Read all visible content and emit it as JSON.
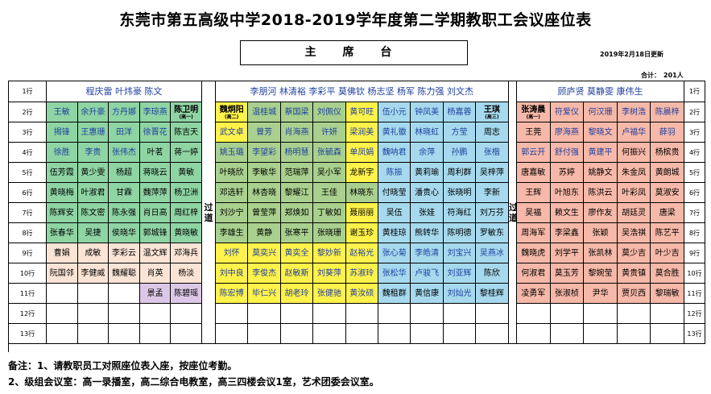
{
  "title": "东莞市第五高级中学2018-2019学年度第二学期教职工会议座位表",
  "stage_label": "主 席 台",
  "updated_text": "2019年2月18日更新",
  "total_label": "合计：",
  "total_value": "201人",
  "aisle_label": "过道",
  "colors": {
    "A": "#8fd4a3",
    "B": "#fbe4d5",
    "C": "#dcc8e6",
    "D": "#a9d08e",
    "E": "#fff24a",
    "F": "#a6d9ed",
    "G": "#f6b8a8",
    "W": "#ffffff",
    "text_dark": "#000000",
    "text_blue": "#1f3f9f"
  },
  "row_labels": [
    "1行",
    "2行",
    "3行",
    "4行",
    "5行",
    "6行",
    "7行",
    "8行",
    "9行",
    "10行",
    "11行",
    "12行",
    "13行"
  ],
  "row1": {
    "left": "程庆雷  叶炜豪  陈文",
    "middle": "李朋河  林清裕  李彩平  莫佛钦  杨志坚  杨军  陈力强  刘文杰",
    "right": "顾庐贤  莫静雯  康伟生"
  },
  "left_block": [
    [
      {
        "t": "王敏",
        "c": "A"
      },
      {
        "t": "余升豪",
        "c": "A"
      },
      {
        "t": "方丹娜",
        "c": "A"
      },
      {
        "t": "李琼燕",
        "c": "A"
      },
      {
        "t": "陈卫明",
        "c": "A",
        "sub": "(高一)",
        "bold": true
      }
    ],
    [
      {
        "t": "揭锋",
        "c": "A"
      },
      {
        "t": "王惠珊",
        "c": "A"
      },
      {
        "t": "田洋",
        "c": "A"
      },
      {
        "t": "徐晋花",
        "c": "A"
      },
      {
        "t": "陈吉天",
        "c": "A",
        "dark": true
      }
    ],
    [
      {
        "t": "徐胜",
        "c": "A"
      },
      {
        "t": "李贵",
        "c": "A"
      },
      {
        "t": "张伟杰",
        "c": "A"
      },
      {
        "t": "叶茗",
        "c": "A",
        "dark": true
      },
      {
        "t": "蒋一婷",
        "c": "A",
        "dark": true
      }
    ],
    [
      {
        "t": "伍芳霞",
        "c": "A",
        "dark": true
      },
      {
        "t": "黄少雯",
        "c": "A",
        "dark": true
      },
      {
        "t": "杨超",
        "c": "A",
        "dark": true
      },
      {
        "t": "蒋晓云",
        "c": "A",
        "dark": true
      },
      {
        "t": "黄敏",
        "c": "A",
        "dark": true
      }
    ],
    [
      {
        "t": "黄晓梅",
        "c": "A",
        "dark": true
      },
      {
        "t": "叶淑君",
        "c": "A",
        "dark": true
      },
      {
        "t": "甘霖",
        "c": "A",
        "dark": true
      },
      {
        "t": "魏萍萍",
        "c": "A",
        "dark": true
      },
      {
        "t": "杨卫洲",
        "c": "A",
        "dark": true
      }
    ],
    [
      {
        "t": "陈辉安",
        "c": "A",
        "dark": true
      },
      {
        "t": "陈文密",
        "c": "A",
        "dark": true
      },
      {
        "t": "陈永强",
        "c": "A",
        "dark": true
      },
      {
        "t": "肖日高",
        "c": "A",
        "dark": true
      },
      {
        "t": "周红梓",
        "c": "A",
        "dark": true
      }
    ],
    [
      {
        "t": "张春华",
        "c": "A",
        "dark": true
      },
      {
        "t": "吴捷",
        "c": "A",
        "dark": true
      },
      {
        "t": "侯晓华",
        "c": "A",
        "dark": true
      },
      {
        "t": "郭城锋",
        "c": "A",
        "dark": true
      },
      {
        "t": "黄晓敏",
        "c": "A",
        "dark": true
      }
    ],
    [
      {
        "t": "曹娟",
        "c": "B",
        "dark": true
      },
      {
        "t": "成敏",
        "c": "B",
        "dark": true
      },
      {
        "t": "李彩云",
        "c": "B",
        "dark": true
      },
      {
        "t": "温文辉",
        "c": "B",
        "dark": true
      },
      {
        "t": "邓海兵",
        "c": "B",
        "dark": true
      }
    ],
    [
      {
        "t": "阮国邻",
        "c": "B",
        "dark": true
      },
      {
        "t": "李健威",
        "c": "B",
        "dark": true
      },
      {
        "t": "魏耀聪",
        "c": "B",
        "dark": true
      },
      {
        "t": "肖英",
        "c": "B",
        "dark": true
      },
      {
        "t": "杨淡",
        "c": "B",
        "dark": true
      }
    ],
    [
      {
        "t": "",
        "c": "W"
      },
      {
        "t": "",
        "c": "W"
      },
      {
        "t": "",
        "c": "W"
      },
      {
        "t": "景孟",
        "c": "C",
        "dark": true
      },
      {
        "t": "陈碧瑶",
        "c": "C",
        "dark": true
      }
    ],
    [
      {
        "t": "",
        "c": "W"
      },
      {
        "t": "",
        "c": "W"
      },
      {
        "t": "",
        "c": "W"
      },
      {
        "t": "",
        "c": "W"
      },
      {
        "t": "",
        "c": "W"
      }
    ],
    [
      {
        "t": "",
        "c": "W"
      },
      {
        "t": "",
        "c": "W"
      },
      {
        "t": "",
        "c": "W"
      },
      {
        "t": "",
        "c": "W"
      },
      {
        "t": "",
        "c": "W"
      }
    ]
  ],
  "middle_block": [
    [
      {
        "t": "魏炯阳",
        "c": "E",
        "sub": "(高二)",
        "bold": true
      },
      {
        "t": "温桂城",
        "c": "D"
      },
      {
        "t": "蔡国梁",
        "c": "D"
      },
      {
        "t": "刘佩仪",
        "c": "D"
      },
      {
        "t": "黄可旺",
        "c": "E"
      },
      {
        "t": "伍小元",
        "c": "F"
      },
      {
        "t": "钟凤美",
        "c": "F"
      },
      {
        "t": "杨嘉蓉",
        "c": "F"
      },
      {
        "t": "王琪",
        "c": "F",
        "sub": "(高三)",
        "bold": true
      }
    ],
    [
      {
        "t": "武文卓",
        "c": "E"
      },
      {
        "t": "曾芳",
        "c": "D"
      },
      {
        "t": "肖海燕",
        "c": "D"
      },
      {
        "t": "许妍",
        "c": "D"
      },
      {
        "t": "梁润美",
        "c": "E"
      },
      {
        "t": "黄礼徽",
        "c": "F"
      },
      {
        "t": "林晓虹",
        "c": "F"
      },
      {
        "t": "方莹",
        "c": "F"
      },
      {
        "t": "周志",
        "c": "F",
        "dark": true
      }
    ],
    [
      {
        "t": "姚玉璐",
        "c": "D"
      },
      {
        "t": "李望彩",
        "c": "D"
      },
      {
        "t": "杨明慧",
        "c": "D"
      },
      {
        "t": "张毓森",
        "c": "D"
      },
      {
        "t": "单凤娟",
        "c": "E"
      },
      {
        "t": "魏呐君",
        "c": "F"
      },
      {
        "t": "余萍",
        "c": "F"
      },
      {
        "t": "孙鹏",
        "c": "F"
      },
      {
        "t": "张楷",
        "c": "F"
      }
    ],
    [
      {
        "t": "叶晓欣",
        "c": "D",
        "dark": true
      },
      {
        "t": "李敏华",
        "c": "D",
        "dark": true
      },
      {
        "t": "范瑞萍",
        "c": "D",
        "dark": true
      },
      {
        "t": "吴小军",
        "c": "D",
        "dark": true
      },
      {
        "t": "龙新宇",
        "c": "E",
        "dark": true
      },
      {
        "t": "陈振",
        "c": "F"
      },
      {
        "t": "黄莉瑜",
        "c": "F",
        "dark": true
      },
      {
        "t": "周利群",
        "c": "F",
        "dark": true
      },
      {
        "t": "吴梓萍",
        "c": "F",
        "dark": true
      }
    ],
    [
      {
        "t": "邓选轩",
        "c": "D",
        "dark": true
      },
      {
        "t": "林杏晓",
        "c": "D",
        "dark": true
      },
      {
        "t": "黎耀江",
        "c": "D",
        "dark": true
      },
      {
        "t": "王佳",
        "c": "D",
        "dark": true
      },
      {
        "t": "林晓东",
        "c": "D",
        "dark": true
      },
      {
        "t": "付晓莹",
        "c": "F",
        "dark": true
      },
      {
        "t": "潘贵心",
        "c": "F",
        "dark": true
      },
      {
        "t": "张晓明",
        "c": "F",
        "dark": true
      },
      {
        "t": "李新",
        "c": "F",
        "dark": true
      }
    ],
    [
      {
        "t": "刘沙宁",
        "c": "D",
        "dark": true
      },
      {
        "t": "曾莹萍",
        "c": "D",
        "dark": true
      },
      {
        "t": "郑焕如",
        "c": "D",
        "dark": true
      },
      {
        "t": "丁敏如",
        "c": "D",
        "dark": true
      },
      {
        "t": "聂丽丽",
        "c": "E",
        "dark": true
      },
      {
        "t": "吴伍",
        "c": "F",
        "dark": true
      },
      {
        "t": "张娃",
        "c": "F",
        "dark": true
      },
      {
        "t": "符海红",
        "c": "F",
        "dark": true
      },
      {
        "t": "刘万芬",
        "c": "F",
        "dark": true
      }
    ],
    [
      {
        "t": "李雄生",
        "c": "D",
        "dark": true
      },
      {
        "t": "黄静",
        "c": "D",
        "dark": true
      },
      {
        "t": "张寒平",
        "c": "D",
        "dark": true
      },
      {
        "t": "张晓珊",
        "c": "D",
        "dark": true
      },
      {
        "t": "谢玉珍",
        "c": "E",
        "dark": true
      },
      {
        "t": "黄桂琼",
        "c": "F",
        "dark": true
      },
      {
        "t": "熊转华",
        "c": "F",
        "dark": true
      },
      {
        "t": "陈明德",
        "c": "F",
        "dark": true
      },
      {
        "t": "罗敏东",
        "c": "F",
        "dark": true
      }
    ],
    [
      {
        "t": "刘怀",
        "c": "E"
      },
      {
        "t": "莫奕兴",
        "c": "E"
      },
      {
        "t": "黄奕全",
        "c": "E"
      },
      {
        "t": "黎妙新",
        "c": "E"
      },
      {
        "t": "赵裕光",
        "c": "E"
      },
      {
        "t": "张心菊",
        "c": "F"
      },
      {
        "t": "李皓清",
        "c": "F"
      },
      {
        "t": "刘宝兴",
        "c": "F"
      },
      {
        "t": "吴燕冰",
        "c": "F"
      }
    ],
    [
      {
        "t": "刘中良",
        "c": "E"
      },
      {
        "t": "李俊杰",
        "c": "E"
      },
      {
        "t": "赵敏斯",
        "c": "E"
      },
      {
        "t": "刘葵萍",
        "c": "E"
      },
      {
        "t": "苏淑玲",
        "c": "E"
      },
      {
        "t": "张松华",
        "c": "F"
      },
      {
        "t": "卢骏飞",
        "c": "F"
      },
      {
        "t": "刘亚辉",
        "c": "F"
      },
      {
        "t": "陈欣",
        "c": "F",
        "dark": true
      }
    ],
    [
      {
        "t": "陈宏博",
        "c": "E"
      },
      {
        "t": "毕仁兴",
        "c": "E"
      },
      {
        "t": "胡老玲",
        "c": "E"
      },
      {
        "t": "张健驰",
        "c": "E"
      },
      {
        "t": "黄汝硕",
        "c": "E"
      },
      {
        "t": "魏租群",
        "c": "F",
        "dark": true
      },
      {
        "t": "黄信康",
        "c": "F",
        "dark": true
      },
      {
        "t": "刘灿光",
        "c": "F"
      },
      {
        "t": "黎桂辉",
        "c": "F",
        "dark": true
      }
    ],
    [
      {
        "t": "",
        "c": "W"
      },
      {
        "t": "",
        "c": "W"
      },
      {
        "t": "",
        "c": "W"
      },
      {
        "t": "",
        "c": "W"
      },
      {
        "t": "",
        "c": "W"
      },
      {
        "t": "",
        "c": "W"
      },
      {
        "t": "",
        "c": "W"
      },
      {
        "t": "",
        "c": "W"
      },
      {
        "t": "",
        "c": "W"
      }
    ],
    [
      {
        "t": "",
        "c": "W"
      },
      {
        "t": "",
        "c": "W"
      },
      {
        "t": "",
        "c": "W"
      },
      {
        "t": "",
        "c": "W"
      },
      {
        "t": "",
        "c": "W"
      },
      {
        "t": "",
        "c": "W"
      },
      {
        "t": "",
        "c": "W"
      },
      {
        "t": "",
        "c": "W"
      },
      {
        "t": "",
        "c": "W"
      }
    ]
  ],
  "right_block": [
    [
      {
        "t": "张涛晨",
        "c": "G",
        "sub": "(高一)",
        "bold": true
      },
      {
        "t": "符爱仪",
        "c": "G"
      },
      {
        "t": "何汉珊",
        "c": "G"
      },
      {
        "t": "李树浩",
        "c": "G"
      },
      {
        "t": "陈晨梓",
        "c": "G"
      }
    ],
    [
      {
        "t": "王莞",
        "c": "G",
        "dark": true
      },
      {
        "t": "廖海燕",
        "c": "G"
      },
      {
        "t": "黎晓文",
        "c": "G"
      },
      {
        "t": "卢福华",
        "c": "G"
      },
      {
        "t": "薛羽",
        "c": "G"
      }
    ],
    [
      {
        "t": "郭云开",
        "c": "G"
      },
      {
        "t": "舒付强",
        "c": "G"
      },
      {
        "t": "黄建平",
        "c": "G"
      },
      {
        "t": "何振兴",
        "c": "G",
        "dark": true
      },
      {
        "t": "杨槟贵",
        "c": "G",
        "dark": true
      }
    ],
    [
      {
        "t": "唐嘉敏",
        "c": "G",
        "dark": true
      },
      {
        "t": "苏婷",
        "c": "G",
        "dark": true
      },
      {
        "t": "姚静文",
        "c": "G",
        "dark": true
      },
      {
        "t": "朱金凤",
        "c": "G",
        "dark": true
      },
      {
        "t": "黄朗城",
        "c": "G",
        "dark": true
      }
    ],
    [
      {
        "t": "王辉",
        "c": "G",
        "dark": true
      },
      {
        "t": "叶旭东",
        "c": "G",
        "dark": true
      },
      {
        "t": "陈洪云",
        "c": "G",
        "dark": true
      },
      {
        "t": "叶彩凤",
        "c": "G",
        "dark": true
      },
      {
        "t": "莫淑安",
        "c": "G",
        "dark": true
      }
    ],
    [
      {
        "t": "吴福",
        "c": "G",
        "dark": true
      },
      {
        "t": "赖文生",
        "c": "G",
        "dark": true
      },
      {
        "t": "廖作友",
        "c": "G",
        "dark": true
      },
      {
        "t": "胡廷灵",
        "c": "G",
        "dark": true
      },
      {
        "t": "唐梁",
        "c": "G",
        "dark": true
      }
    ],
    [
      {
        "t": "周海军",
        "c": "G",
        "dark": true
      },
      {
        "t": "李梁鑫",
        "c": "G",
        "dark": true
      },
      {
        "t": "张颖",
        "c": "G",
        "dark": true
      },
      {
        "t": "吴浩祺",
        "c": "G",
        "dark": true
      },
      {
        "t": "陈艺平",
        "c": "G",
        "dark": true
      }
    ],
    [
      {
        "t": "魏晓虎",
        "c": "G",
        "dark": true
      },
      {
        "t": "刘学平",
        "c": "G",
        "dark": true
      },
      {
        "t": "张凯林",
        "c": "G",
        "dark": true
      },
      {
        "t": "莫少吉",
        "c": "G",
        "dark": true
      },
      {
        "t": "叶少吉",
        "c": "G",
        "dark": true
      }
    ],
    [
      {
        "t": "何淑君",
        "c": "G",
        "dark": true
      },
      {
        "t": "莫玉芳",
        "c": "G",
        "dark": true
      },
      {
        "t": "黎婉莹",
        "c": "G",
        "dark": true
      },
      {
        "t": "黄贵镇",
        "c": "G",
        "dark": true
      },
      {
        "t": "莫合胜",
        "c": "G",
        "dark": true
      }
    ],
    [
      {
        "t": "凌勇军",
        "c": "G",
        "dark": true
      },
      {
        "t": "张淑桢",
        "c": "G",
        "dark": true
      },
      {
        "t": "尹华",
        "c": "G",
        "dark": true
      },
      {
        "t": "贾贝西",
        "c": "G",
        "dark": true
      },
      {
        "t": "黎瑞敏",
        "c": "G",
        "dark": true
      }
    ],
    [
      {
        "t": "",
        "c": "W"
      },
      {
        "t": "",
        "c": "W"
      },
      {
        "t": "",
        "c": "W"
      },
      {
        "t": "",
        "c": "W"
      },
      {
        "t": "",
        "c": "W"
      }
    ],
    [
      {
        "t": "",
        "c": "W"
      },
      {
        "t": "",
        "c": "W"
      },
      {
        "t": "",
        "c": "W"
      },
      {
        "t": "",
        "c": "W"
      },
      {
        "t": "",
        "c": "W"
      }
    ]
  ],
  "notes": [
    "备注：1、请教职员工对照座位表入座，按座位考勤。",
    "2、级组会议室：高一录播室，高二综合电教室，高三四楼会议1室，艺术团委会议室。"
  ]
}
